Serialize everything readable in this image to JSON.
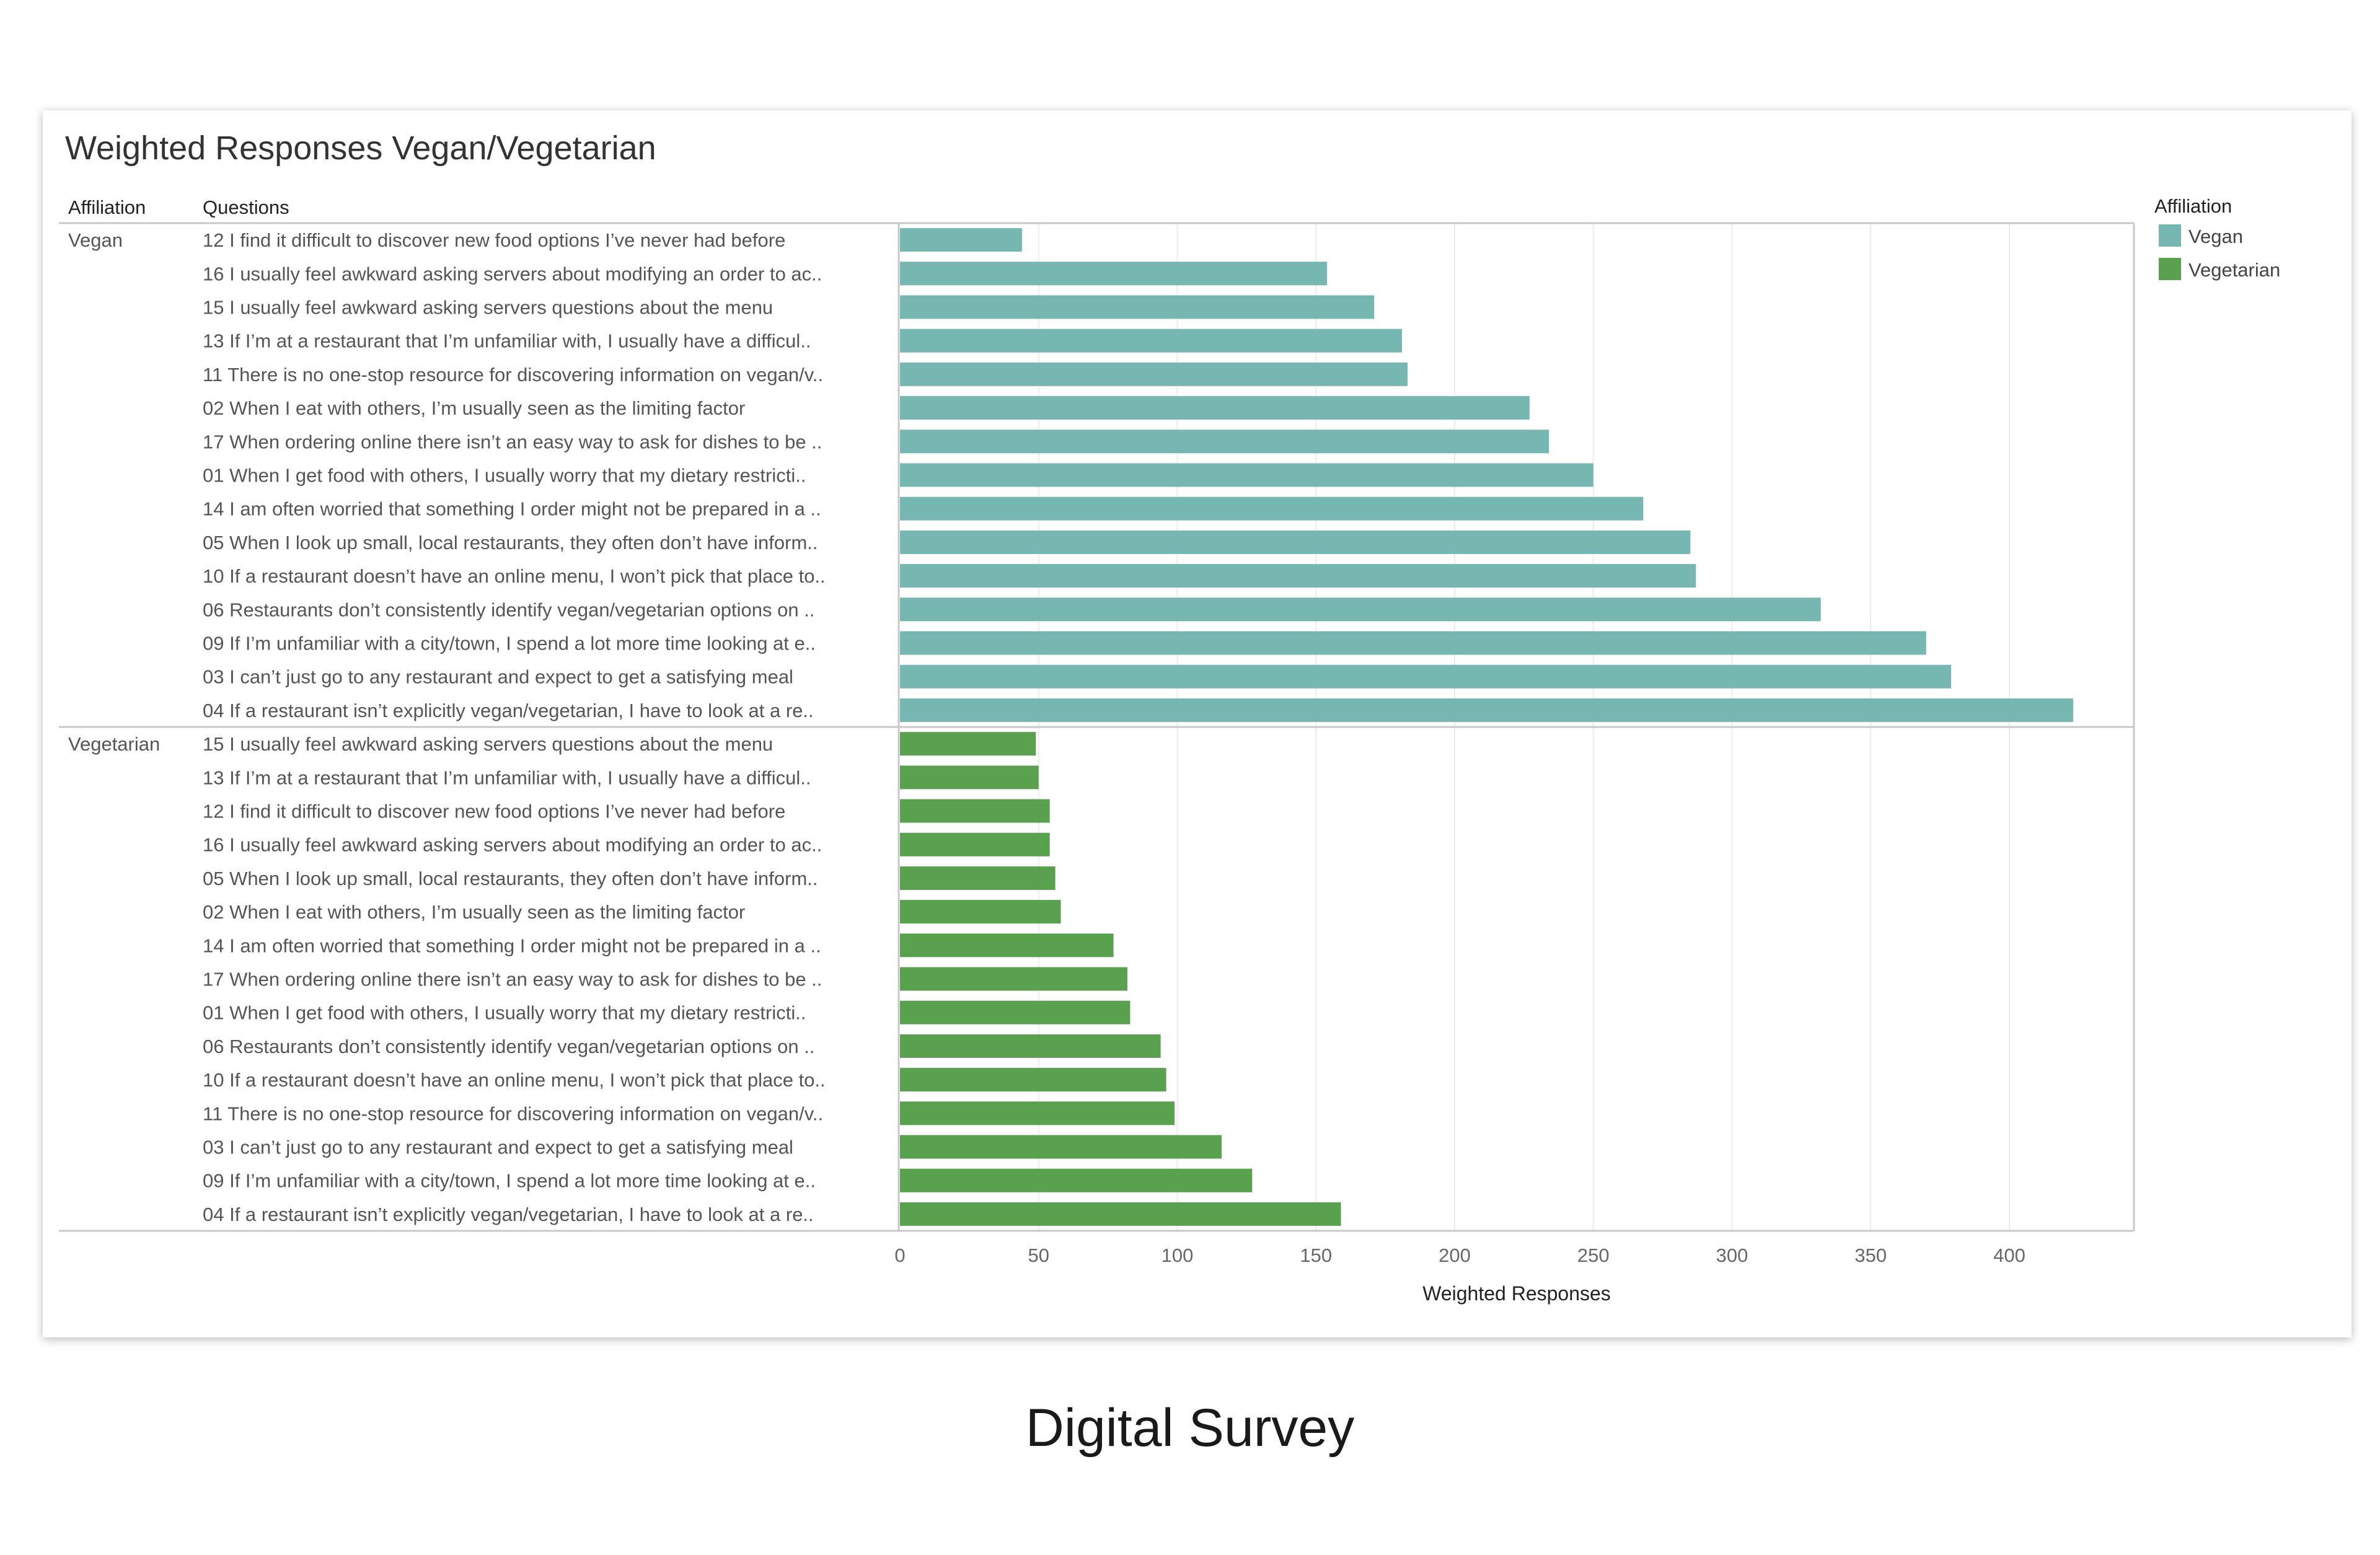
{
  "caption": "Digital Survey",
  "chart_data": {
    "type": "bar",
    "orientation": "horizontal",
    "title": "Weighted Responses Vegan/Vegetarian",
    "row_header_1": "Affiliation",
    "row_header_2": "Questions",
    "xlabel": "Weighted Responses",
    "xlim": [
      0,
      430
    ],
    "xticks": [
      0,
      50,
      100,
      150,
      200,
      250,
      300,
      350,
      400
    ],
    "grid": true,
    "legend": {
      "title": "Affiliation",
      "position": "top-right",
      "entries": [
        {
          "label": "Vegan",
          "color": "#76b7b2"
        },
        {
          "label": "Vegetarian",
          "color": "#59a14f"
        }
      ]
    },
    "groups": [
      {
        "name": "Vegan",
        "color": "#76b7b2",
        "categories": [
          "12 I find it difficult to discover new food options I’ve never had before",
          "16 I usually feel awkward asking servers about modifying an order to ac..",
          "15 I usually feel awkward asking servers questions about the menu",
          "13 If I’m at a restaurant that I’m unfamiliar with, I usually have a difficul..",
          "11 There is no one-stop resource for discovering information on vegan/v..",
          "02 When I eat with others, I’m usually seen as the limiting factor",
          "17 When ordering online there isn’t an easy way to ask for dishes to be ..",
          "01 When I get food with others, I usually worry that my dietary restricti..",
          "14 I am often worried that something I order might not be prepared in a ..",
          "05 When I look up small, local restaurants, they often don’t have inform..",
          "10 If a restaurant doesn’t have an online menu, I won’t pick that place to..",
          "06 Restaurants don’t consistently identify vegan/vegetarian options on ..",
          "09 If I’m unfamiliar with a city/town, I spend a lot more time looking at e..",
          "03 I can’t just go to any restaurant and expect to get a satisfying meal",
          "04 If a restaurant isn’t explicitly vegan/vegetarian, I have to look at a re.."
        ],
        "values": [
          44,
          154,
          171,
          181,
          183,
          227,
          234,
          250,
          268,
          285,
          287,
          332,
          370,
          379,
          423
        ]
      },
      {
        "name": "Vegetarian",
        "color": "#59a14f",
        "categories": [
          "15 I usually feel awkward asking servers questions about the menu",
          "13 If I’m at a restaurant that I’m unfamiliar with, I usually have a difficul..",
          "12 I find it difficult to discover new food options I’ve never had before",
          "16 I usually feel awkward asking servers about modifying an order to ac..",
          "05 When I look up small, local restaurants, they often don’t have inform..",
          "02 When I eat with others, I’m usually seen as the limiting factor",
          "14 I am often worried that something I order might not be prepared in a ..",
          "17 When ordering online there isn’t an easy way to ask for dishes to be ..",
          "01 When I get food with others, I usually worry that my dietary restricti..",
          "06 Restaurants don’t consistently identify vegan/vegetarian options on ..",
          "10 If a restaurant doesn’t have an online menu, I won’t pick that place to..",
          "11 There is no one-stop resource for discovering information on vegan/v..",
          "03 I can’t just go to any restaurant and expect to get a satisfying meal",
          "09 If I’m unfamiliar with a city/town, I spend a lot more time looking at e..",
          "04 If a restaurant isn’t explicitly vegan/vegetarian, I have to look at a re.."
        ],
        "values": [
          49,
          50,
          54,
          54,
          56,
          58,
          77,
          82,
          83,
          94,
          96,
          99,
          116,
          127,
          159
        ]
      }
    ]
  }
}
